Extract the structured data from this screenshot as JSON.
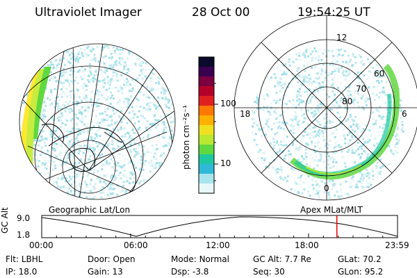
{
  "header": {
    "instrument": "Ultraviolet Imager",
    "date": "28 Oct 00",
    "time": "19:54:25 UT"
  },
  "colorbar": {
    "unit_label": "photon cm⁻²s⁻¹",
    "ticks": [
      "100",
      "10"
    ],
    "colors": [
      "#0a0a2a",
      "#3a0050",
      "#7a0040",
      "#b40028",
      "#e02020",
      "#ff7800",
      "#ffb000",
      "#f0e020",
      "#b8e830",
      "#60d840",
      "#20c8a0",
      "#30b8d8",
      "#a8e4ec",
      "#e8f8f8"
    ]
  },
  "left_panel": {
    "label": "Geographic Lat/Lon"
  },
  "right_panel": {
    "label": "Apex MLat/MLT",
    "mlt_labels": {
      "top": "12",
      "left": "18",
      "right": "6",
      "bottom": "0"
    },
    "lat_labels": [
      "60",
      "70",
      "80"
    ]
  },
  "timeline": {
    "axis_label": "GC Alt",
    "y_ticks": [
      "9.0",
      "1.8"
    ],
    "x_ticks": [
      "00:00",
      "06:00",
      "12:00",
      "18:00",
      "23:59"
    ],
    "current_time_fraction": 0.8295,
    "marker_color": "#e00000"
  },
  "info": {
    "row1": [
      {
        "label": "Flt:",
        "value": "LBHL"
      },
      {
        "label": "Door:",
        "value": "Open"
      },
      {
        "label": "Mode:",
        "value": "Normal"
      },
      {
        "label": "GC Alt:",
        "value": "7.7 Re"
      },
      {
        "label": "GLat:",
        "value": "70.2"
      }
    ],
    "row2": [
      {
        "label": "IP:",
        "value": "18.0"
      },
      {
        "label": "Gain:",
        "value": "13"
      },
      {
        "label": "Dsp:",
        "value": "-3.8"
      },
      {
        "label": "Seq:",
        "value": "30"
      },
      {
        "label": "GLon:",
        "value": "95.2"
      }
    ]
  }
}
